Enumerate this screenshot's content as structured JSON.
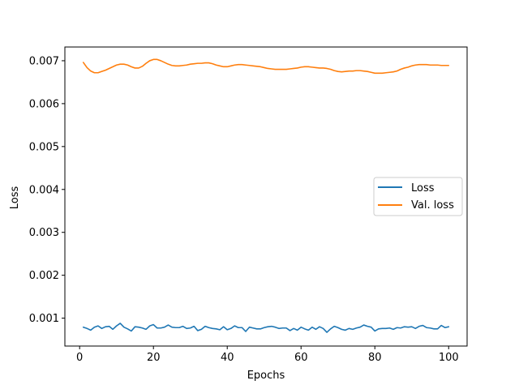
{
  "chart_data": {
    "type": "line",
    "xlabel": "Epochs",
    "ylabel": "Loss",
    "xlim": [
      -4,
      105
    ],
    "ylim": [
      0.00035,
      0.00732
    ],
    "xticks": [
      0,
      20,
      40,
      60,
      80,
      100
    ],
    "yticks": [
      0.001,
      0.002,
      0.003,
      0.004,
      0.005,
      0.006,
      0.007
    ],
    "ytick_labels": [
      "0.001",
      "0.002",
      "0.003",
      "0.004",
      "0.005",
      "0.006",
      "0.007"
    ],
    "grid": false,
    "legend": {
      "placement": "center-right",
      "entries": [
        "Loss",
        "Val. loss"
      ]
    },
    "colors": {
      "loss": "#1f77b4",
      "val_loss": "#ff7f0e"
    },
    "x": [
      1,
      2,
      3,
      4,
      5,
      6,
      7,
      8,
      9,
      10,
      11,
      12,
      13,
      14,
      15,
      16,
      17,
      18,
      19,
      20,
      21,
      22,
      23,
      24,
      25,
      26,
      27,
      28,
      29,
      30,
      31,
      32,
      33,
      34,
      35,
      36,
      37,
      38,
      39,
      40,
      41,
      42,
      43,
      44,
      45,
      46,
      47,
      48,
      49,
      50,
      51,
      52,
      53,
      54,
      55,
      56,
      57,
      58,
      59,
      60,
      61,
      62,
      63,
      64,
      65,
      66,
      67,
      68,
      69,
      70,
      71,
      72,
      73,
      74,
      75,
      76,
      77,
      78,
      79,
      80,
      81,
      82,
      83,
      84,
      85,
      86,
      87,
      88,
      89,
      90,
      91,
      92,
      93,
      94,
      95,
      96,
      97,
      98,
      99,
      100
    ],
    "series": [
      {
        "name": "Loss",
        "values": [
          0.00079,
          0.00076,
          0.00072,
          0.00079,
          0.00082,
          0.00076,
          0.0008,
          0.00081,
          0.00074,
          0.00082,
          0.00088,
          0.00079,
          0.00075,
          0.0007,
          0.0008,
          0.00079,
          0.00077,
          0.00074,
          0.00082,
          0.00085,
          0.00077,
          0.00077,
          0.00079,
          0.00084,
          0.00079,
          0.00078,
          0.00078,
          0.00081,
          0.00076,
          0.00077,
          0.00081,
          0.00071,
          0.00074,
          0.00081,
          0.00078,
          0.00076,
          0.00075,
          0.00073,
          0.0008,
          0.00073,
          0.00076,
          0.00082,
          0.00078,
          0.00078,
          0.00069,
          0.00079,
          0.00077,
          0.00075,
          0.00075,
          0.00078,
          0.0008,
          0.00081,
          0.00079,
          0.00076,
          0.00077,
          0.00077,
          0.00071,
          0.00076,
          0.00072,
          0.00079,
          0.00075,
          0.00072,
          0.00079,
          0.00074,
          0.0008,
          0.00076,
          0.00067,
          0.00075,
          0.00081,
          0.00078,
          0.00074,
          0.00072,
          0.00076,
          0.00074,
          0.00077,
          0.00079,
          0.00084,
          0.00081,
          0.00079,
          0.0007,
          0.00075,
          0.00076,
          0.00076,
          0.00077,
          0.00074,
          0.00078,
          0.00077,
          0.0008,
          0.00079,
          0.0008,
          0.00076,
          0.00081,
          0.00083,
          0.00078,
          0.00077,
          0.00075,
          0.00075,
          0.00083,
          0.00078,
          0.0008
        ]
      },
      {
        "name": "Val. loss",
        "values": [
          0.00696,
          0.00684,
          0.00676,
          0.00672,
          0.00672,
          0.00675,
          0.00678,
          0.00682,
          0.00686,
          0.0069,
          0.00692,
          0.00692,
          0.0069,
          0.00686,
          0.00683,
          0.00683,
          0.00687,
          0.00694,
          0.007,
          0.00703,
          0.00703,
          0.007,
          0.00696,
          0.00692,
          0.00689,
          0.00688,
          0.00688,
          0.00689,
          0.0069,
          0.00692,
          0.00693,
          0.00694,
          0.00694,
          0.00695,
          0.00695,
          0.00693,
          0.0069,
          0.00688,
          0.00686,
          0.00686,
          0.00688,
          0.0069,
          0.00691,
          0.00691,
          0.0069,
          0.00689,
          0.00688,
          0.00687,
          0.00686,
          0.00684,
          0.00682,
          0.00681,
          0.0068,
          0.0068,
          0.0068,
          0.0068,
          0.00681,
          0.00682,
          0.00683,
          0.00685,
          0.00686,
          0.00686,
          0.00685,
          0.00684,
          0.00683,
          0.00683,
          0.00682,
          0.0068,
          0.00677,
          0.00675,
          0.00674,
          0.00675,
          0.00676,
          0.00676,
          0.00677,
          0.00677,
          0.00676,
          0.00675,
          0.00673,
          0.00671,
          0.00671,
          0.00671,
          0.00672,
          0.00673,
          0.00674,
          0.00676,
          0.0068,
          0.00683,
          0.00685,
          0.00688,
          0.0069,
          0.00691,
          0.00691,
          0.00691,
          0.0069,
          0.0069,
          0.0069,
          0.00689,
          0.00689,
          0.00689
        ]
      }
    ]
  }
}
